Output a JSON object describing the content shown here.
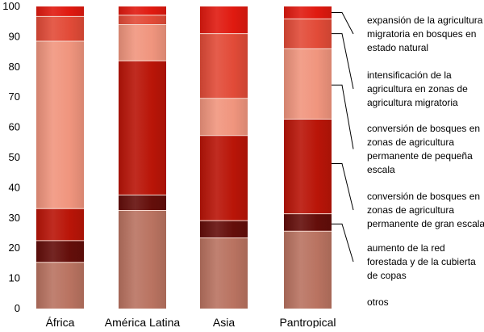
{
  "chart_data": {
    "type": "bar",
    "stacked": true,
    "categories": [
      "África",
      "América Latina",
      "Asia",
      "Pantropical"
    ],
    "ylim": [
      0,
      100
    ],
    "yticks": [
      0,
      10,
      20,
      30,
      40,
      50,
      60,
      70,
      80,
      90,
      100
    ],
    "grid": false,
    "legend_position": "right",
    "series": [
      {
        "name": "otros",
        "values": [
          15.3,
          32.5,
          23.4,
          25.6
        ],
        "color": "#b97361",
        "legend_anchor": 15
      },
      {
        "name": "aumento de la red forestada y de la cubierta de copas",
        "values": [
          7.2,
          5.1,
          5.7,
          5.8
        ],
        "color": "#640e0a",
        "legend_anchor": 28
      },
      {
        "name": "conversión de bosques en zonas de agricultura permanente de gran escala",
        "values": [
          10.6,
          44.4,
          28.2,
          31.3
        ],
        "color": "#b91508",
        "legend_anchor": 48
      },
      {
        "name": "conversión de bosques en zonas de agricultura permanente de pequeña escala",
        "values": [
          55.4,
          12.0,
          12.3,
          23.3
        ],
        "color": "#f0957e",
        "legend_anchor": 74
      },
      {
        "name": "intensificación de la agricultura en zonas de agricultura migratoria",
        "values": [
          8.2,
          3.1,
          21.4,
          9.9
        ],
        "color": "#e24b38",
        "legend_anchor": 91
      },
      {
        "name": "expansión de la agricultura migratoria en bosques en estado natural",
        "values": [
          3.3,
          2.9,
          9.0,
          4.1
        ],
        "color": "#e01a10",
        "legend_anchor": 98
      }
    ],
    "legend_lines": [
      [
        "otros"
      ],
      [
        "aumento de la red",
        "forestada y de la cubierta",
        "de copas"
      ],
      [
        "conversión de bosques en",
        "zonas de agricultura",
        "permanente de gran escala"
      ],
      [
        "conversión de bosques en",
        "zonas de agricultura",
        "permanente de pequeña",
        "escala"
      ],
      [
        "intensificación de la",
        "agricultura en zonas de",
        "agricultura migratoria"
      ],
      [
        "expansión de la agricultura",
        "migratoria en bosques en",
        "estado natural"
      ]
    ]
  }
}
